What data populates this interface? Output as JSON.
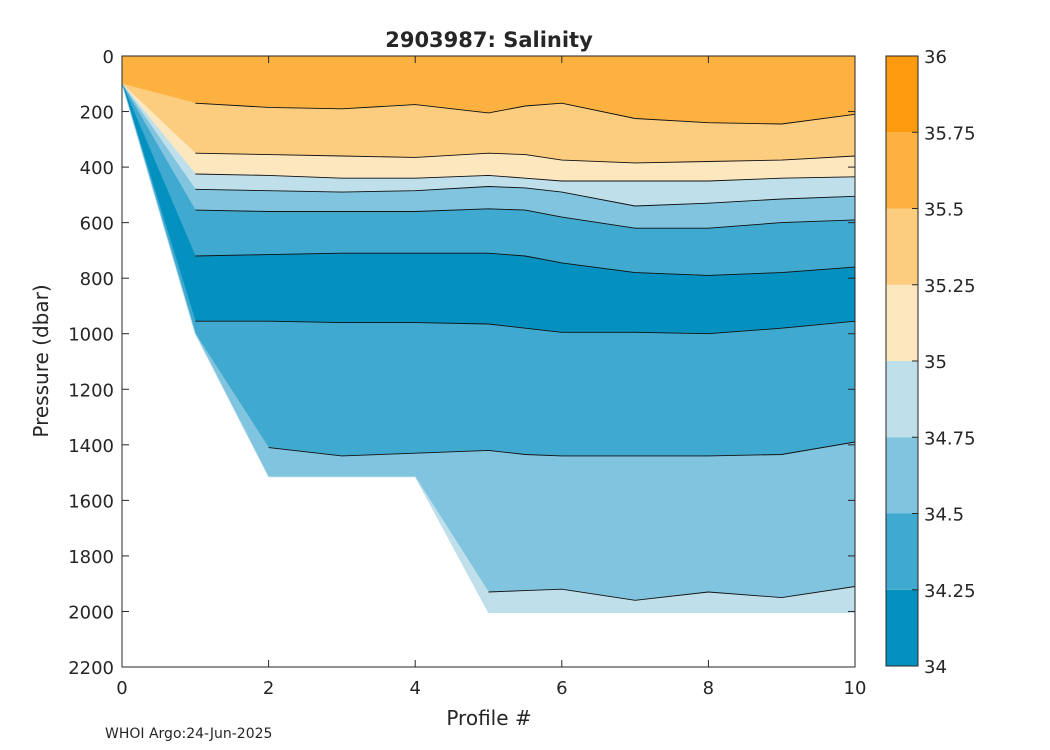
{
  "chart_data": {
    "type": "heatmap",
    "title": "2903987:  Salinity",
    "xlabel": "Profile #",
    "ylabel": "Pressure (dbar)",
    "xlim": [
      0,
      10
    ],
    "ylim": [
      0,
      2200
    ],
    "y_reversed": true,
    "x_ticks": [
      "0",
      "2",
      "4",
      "6",
      "8",
      "10"
    ],
    "y_ticks": [
      "0",
      "200",
      "400",
      "600",
      "800",
      "1000",
      "1200",
      "1400",
      "1600",
      "1800",
      "2000",
      "2200"
    ],
    "colorbar": {
      "ticks": [
        "34",
        "34.25",
        "34.5",
        "34.75",
        "35",
        "35.25",
        "35.5",
        "35.75",
        "36"
      ],
      "band_colors": [
        "#0591c0",
        "#40a9cf",
        "#80c4df",
        "#bfe0ea",
        "#fde7bf",
        "#fccc7f",
        "#fcb141",
        "#fd9a0d"
      ]
    },
    "profiles_x": [
      0,
      1,
      2,
      3,
      4,
      5,
      5.5,
      6,
      7,
      8,
      9,
      10
    ],
    "max_depth": [
      100,
      1000,
      1515,
      1515,
      1515,
      2005,
      2005,
      2005,
      2005,
      2005,
      2005,
      2005
    ],
    "isohalines": [
      {
        "value": 35.5,
        "depth": [
          null,
          170,
          185,
          190,
          175,
          205,
          180,
          170,
          225,
          240,
          245,
          210
        ]
      },
      {
        "value": 35.25,
        "depth": [
          null,
          350,
          355,
          360,
          365,
          350,
          355,
          375,
          385,
          380,
          375,
          360
        ]
      },
      {
        "value": 35,
        "depth": [
          null,
          425,
          430,
          440,
          440,
          430,
          440,
          450,
          450,
          450,
          440,
          435
        ]
      },
      {
        "value": 34.75,
        "depth": [
          null,
          480,
          485,
          490,
          485,
          470,
          475,
          490,
          540,
          530,
          515,
          505
        ]
      },
      {
        "value": 34.5,
        "depth": [
          null,
          555,
          560,
          560,
          560,
          550,
          555,
          580,
          620,
          620,
          600,
          590
        ]
      },
      {
        "value": 34.25,
        "depth": [
          null,
          720,
          715,
          710,
          710,
          710,
          720,
          745,
          780,
          790,
          780,
          760
        ]
      },
      {
        "value": 34.25,
        "depth": [
          null,
          955,
          955,
          960,
          960,
          965,
          980,
          995,
          995,
          1000,
          980,
          955
        ]
      },
      {
        "value": 34.5,
        "depth": [
          null,
          null,
          1410,
          1440,
          1430,
          1420,
          1435,
          1440,
          1440,
          1440,
          1435,
          1390
        ]
      },
      {
        "value": 34.75,
        "depth": [
          null,
          null,
          null,
          null,
          null,
          1930,
          1925,
          1920,
          1960,
          1930,
          1950,
          1910
        ]
      }
    ],
    "band_salinity_top_down": [
      35.6,
      35.4,
      35.1,
      34.9,
      34.6,
      34.4,
      34.1,
      34.4,
      34.6,
      34.9
    ]
  },
  "credit": "WHOI Argo:24-Jun-2025"
}
